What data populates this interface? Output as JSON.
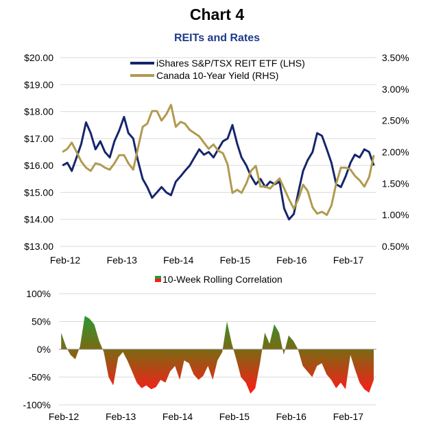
{
  "header": {
    "title": "Chart 4",
    "subtitle": "REITs and Rates"
  },
  "colors": {
    "reit": "#15266b",
    "yield": "#b09a4e",
    "grid": "#d9d9d9",
    "corr_positive": "#1f9e3a",
    "corr_zero": "#7a6a12",
    "corr_negative": "#ff1a1a"
  },
  "chart_data": [
    {
      "type": "line",
      "title": "REITs and Rates",
      "x_ticks": [
        "Feb-12",
        "Feb-13",
        "Feb-14",
        "Feb-15",
        "Feb-16",
        "Feb-17"
      ],
      "y_left_ticks": [
        "$13.00",
        "$14.00",
        "$15.00",
        "$16.00",
        "$17.00",
        "$18.00",
        "$19.00",
        "$20.00"
      ],
      "y_right_ticks": [
        "0.50%",
        "1.00%",
        "1.50%",
        "2.00%",
        "2.50%",
        "3.00%",
        "3.50%"
      ],
      "ylim_left": [
        13,
        20
      ],
      "ylim_right": [
        0.5,
        3.5
      ],
      "xlim": [
        "2012-01-01",
        "2017-08-01"
      ],
      "grid": "horizontal",
      "legend_position": "top-center",
      "series": [
        {
          "name": "iShares S&P/TSX REIT ETF (LHS)",
          "axis": "left",
          "points": [
            [
              "2012-01",
              16.0
            ],
            [
              "2012-02",
              16.1
            ],
            [
              "2012-03",
              15.8
            ],
            [
              "2012-04",
              16.3
            ],
            [
              "2012-05",
              16.8
            ],
            [
              "2012-06",
              17.6
            ],
            [
              "2012-07",
              17.2
            ],
            [
              "2012-08",
              16.6
            ],
            [
              "2012-09",
              16.9
            ],
            [
              "2012-10",
              16.5
            ],
            [
              "2012-11",
              16.3
            ],
            [
              "2012-12",
              16.9
            ],
            [
              "2013-01",
              17.3
            ],
            [
              "2013-02",
              17.8
            ],
            [
              "2013-03",
              17.2
            ],
            [
              "2013-04",
              17.0
            ],
            [
              "2013-05",
              16.2
            ],
            [
              "2013-06",
              15.5
            ],
            [
              "2013-07",
              15.2
            ],
            [
              "2013-08",
              14.8
            ],
            [
              "2013-09",
              15.0
            ],
            [
              "2013-10",
              15.2
            ],
            [
              "2013-11",
              15.0
            ],
            [
              "2013-12",
              14.9
            ],
            [
              "2014-01",
              15.4
            ],
            [
              "2014-02",
              15.6
            ],
            [
              "2014-03",
              15.8
            ],
            [
              "2014-04",
              16.0
            ],
            [
              "2014-05",
              16.3
            ],
            [
              "2014-06",
              16.6
            ],
            [
              "2014-07",
              16.4
            ],
            [
              "2014-08",
              16.5
            ],
            [
              "2014-09",
              16.3
            ],
            [
              "2014-10",
              16.6
            ],
            [
              "2014-11",
              16.9
            ],
            [
              "2014-12",
              17.0
            ],
            [
              "2015-01",
              17.5
            ],
            [
              "2015-02",
              16.8
            ],
            [
              "2015-03",
              16.3
            ],
            [
              "2015-04",
              16.0
            ],
            [
              "2015-05",
              15.6
            ],
            [
              "2015-06",
              15.3
            ],
            [
              "2015-07",
              15.5
            ],
            [
              "2015-08",
              15.2
            ],
            [
              "2015-09",
              15.4
            ],
            [
              "2015-10",
              15.3
            ],
            [
              "2015-11",
              15.4
            ],
            [
              "2015-12",
              14.4
            ],
            [
              "2016-01",
              14.0
            ],
            [
              "2016-02",
              14.2
            ],
            [
              "2016-03",
              15.0
            ],
            [
              "2016-04",
              15.8
            ],
            [
              "2016-05",
              16.2
            ],
            [
              "2016-06",
              16.5
            ],
            [
              "2016-07",
              17.2
            ],
            [
              "2016-08",
              17.1
            ],
            [
              "2016-09",
              16.6
            ],
            [
              "2016-10",
              16.1
            ],
            [
              "2016-11",
              15.3
            ],
            [
              "2016-12",
              15.2
            ],
            [
              "2017-01",
              15.6
            ],
            [
              "2017-02",
              16.1
            ],
            [
              "2017-03",
              16.4
            ],
            [
              "2017-04",
              16.3
            ],
            [
              "2017-05",
              16.6
            ],
            [
              "2017-06",
              16.5
            ],
            [
              "2017-07",
              16.0
            ]
          ]
        },
        {
          "name": "Canada 10-Year Yield (RHS)",
          "axis": "right",
          "points": [
            [
              "2012-01",
              2.0
            ],
            [
              "2012-02",
              2.05
            ],
            [
              "2012-03",
              2.15
            ],
            [
              "2012-04",
              2.0
            ],
            [
              "2012-05",
              1.85
            ],
            [
              "2012-06",
              1.75
            ],
            [
              "2012-07",
              1.7
            ],
            [
              "2012-08",
              1.82
            ],
            [
              "2012-09",
              1.8
            ],
            [
              "2012-10",
              1.75
            ],
            [
              "2012-11",
              1.72
            ],
            [
              "2012-12",
              1.82
            ],
            [
              "2013-01",
              1.95
            ],
            [
              "2013-02",
              1.95
            ],
            [
              "2013-03",
              1.82
            ],
            [
              "2013-04",
              1.72
            ],
            [
              "2013-05",
              2.05
            ],
            [
              "2013-06",
              2.4
            ],
            [
              "2013-07",
              2.45
            ],
            [
              "2013-08",
              2.65
            ],
            [
              "2013-09",
              2.65
            ],
            [
              "2013-10",
              2.5
            ],
            [
              "2013-11",
              2.6
            ],
            [
              "2013-12",
              2.75
            ],
            [
              "2014-01",
              2.4
            ],
            [
              "2014-02",
              2.48
            ],
            [
              "2014-03",
              2.45
            ],
            [
              "2014-04",
              2.35
            ],
            [
              "2014-05",
              2.3
            ],
            [
              "2014-06",
              2.25
            ],
            [
              "2014-07",
              2.15
            ],
            [
              "2014-08",
              2.05
            ],
            [
              "2014-09",
              2.12
            ],
            [
              "2014-10",
              2.02
            ],
            [
              "2014-11",
              1.98
            ],
            [
              "2014-12",
              1.8
            ],
            [
              "2015-01",
              1.35
            ],
            [
              "2015-02",
              1.4
            ],
            [
              "2015-03",
              1.35
            ],
            [
              "2015-04",
              1.5
            ],
            [
              "2015-05",
              1.7
            ],
            [
              "2015-06",
              1.78
            ],
            [
              "2015-07",
              1.45
            ],
            [
              "2015-08",
              1.45
            ],
            [
              "2015-09",
              1.42
            ],
            [
              "2015-10",
              1.5
            ],
            [
              "2015-11",
              1.58
            ],
            [
              "2015-12",
              1.42
            ],
            [
              "2016-01",
              1.25
            ],
            [
              "2016-02",
              1.1
            ],
            [
              "2016-03",
              1.25
            ],
            [
              "2016-04",
              1.48
            ],
            [
              "2016-05",
              1.38
            ],
            [
              "2016-06",
              1.12
            ],
            [
              "2016-07",
              1.02
            ],
            [
              "2016-08",
              1.05
            ],
            [
              "2016-09",
              1.0
            ],
            [
              "2016-10",
              1.15
            ],
            [
              "2016-11",
              1.5
            ],
            [
              "2016-12",
              1.75
            ],
            [
              "2017-01",
              1.75
            ],
            [
              "2017-02",
              1.72
            ],
            [
              "2017-03",
              1.62
            ],
            [
              "2017-04",
              1.55
            ],
            [
              "2017-05",
              1.45
            ],
            [
              "2017-06",
              1.6
            ],
            [
              "2017-07",
              1.95
            ]
          ]
        }
      ]
    },
    {
      "type": "area",
      "title": "",
      "x_ticks": [
        "Feb-12",
        "Feb-13",
        "Feb-14",
        "Feb-15",
        "Feb-16",
        "Feb-17"
      ],
      "y_ticks": [
        "-100%",
        "-50%",
        "0%",
        "50%",
        "100%"
      ],
      "ylim": [
        -100,
        100
      ],
      "xlim": [
        "2012-01-01",
        "2017-08-01"
      ],
      "grid": "horizontal",
      "legend_position": "top-center",
      "series": [
        {
          "name": "10-Week Rolling Correlation",
          "points": [
            [
              "2012-01",
              30
            ],
            [
              "2012-02",
              5
            ],
            [
              "2012-03",
              -10
            ],
            [
              "2012-04",
              -18
            ],
            [
              "2012-05",
              5
            ],
            [
              "2012-06",
              60
            ],
            [
              "2012-07",
              55
            ],
            [
              "2012-08",
              45
            ],
            [
              "2012-09",
              15
            ],
            [
              "2012-10",
              -5
            ],
            [
              "2012-11",
              -50
            ],
            [
              "2012-12",
              -65
            ],
            [
              "2013-01",
              -15
            ],
            [
              "2013-02",
              -5
            ],
            [
              "2013-03",
              -20
            ],
            [
              "2013-04",
              -40
            ],
            [
              "2013-05",
              -60
            ],
            [
              "2013-06",
              -70
            ],
            [
              "2013-07",
              -65
            ],
            [
              "2013-08",
              -72
            ],
            [
              "2013-09",
              -68
            ],
            [
              "2013-10",
              -55
            ],
            [
              "2013-11",
              -60
            ],
            [
              "2013-12",
              -40
            ],
            [
              "2014-01",
              -30
            ],
            [
              "2014-02",
              -55
            ],
            [
              "2014-03",
              -20
            ],
            [
              "2014-04",
              -25
            ],
            [
              "2014-05",
              -45
            ],
            [
              "2014-06",
              -55
            ],
            [
              "2014-07",
              -48
            ],
            [
              "2014-08",
              -30
            ],
            [
              "2014-09",
              -55
            ],
            [
              "2014-10",
              -20
            ],
            [
              "2014-11",
              -5
            ],
            [
              "2014-12",
              50
            ],
            [
              "2015-01",
              10
            ],
            [
              "2015-02",
              -20
            ],
            [
              "2015-03",
              -50
            ],
            [
              "2015-04",
              -60
            ],
            [
              "2015-05",
              -80
            ],
            [
              "2015-06",
              -70
            ],
            [
              "2015-07",
              -25
            ],
            [
              "2015-08",
              30
            ],
            [
              "2015-09",
              10
            ],
            [
              "2015-10",
              45
            ],
            [
              "2015-11",
              30
            ],
            [
              "2015-12",
              -10
            ],
            [
              "2016-01",
              25
            ],
            [
              "2016-02",
              15
            ],
            [
              "2016-03",
              0
            ],
            [
              "2016-04",
              -30
            ],
            [
              "2016-05",
              -40
            ],
            [
              "2016-06",
              -50
            ],
            [
              "2016-07",
              -30
            ],
            [
              "2016-08",
              -25
            ],
            [
              "2016-09",
              -45
            ],
            [
              "2016-10",
              -55
            ],
            [
              "2016-11",
              -70
            ],
            [
              "2016-12",
              -60
            ],
            [
              "2017-01",
              -72
            ],
            [
              "2017-02",
              -10
            ],
            [
              "2017-03",
              -35
            ],
            [
              "2017-04",
              -60
            ],
            [
              "2017-05",
              -72
            ],
            [
              "2017-06",
              -78
            ],
            [
              "2017-07",
              -55
            ]
          ]
        }
      ]
    }
  ]
}
